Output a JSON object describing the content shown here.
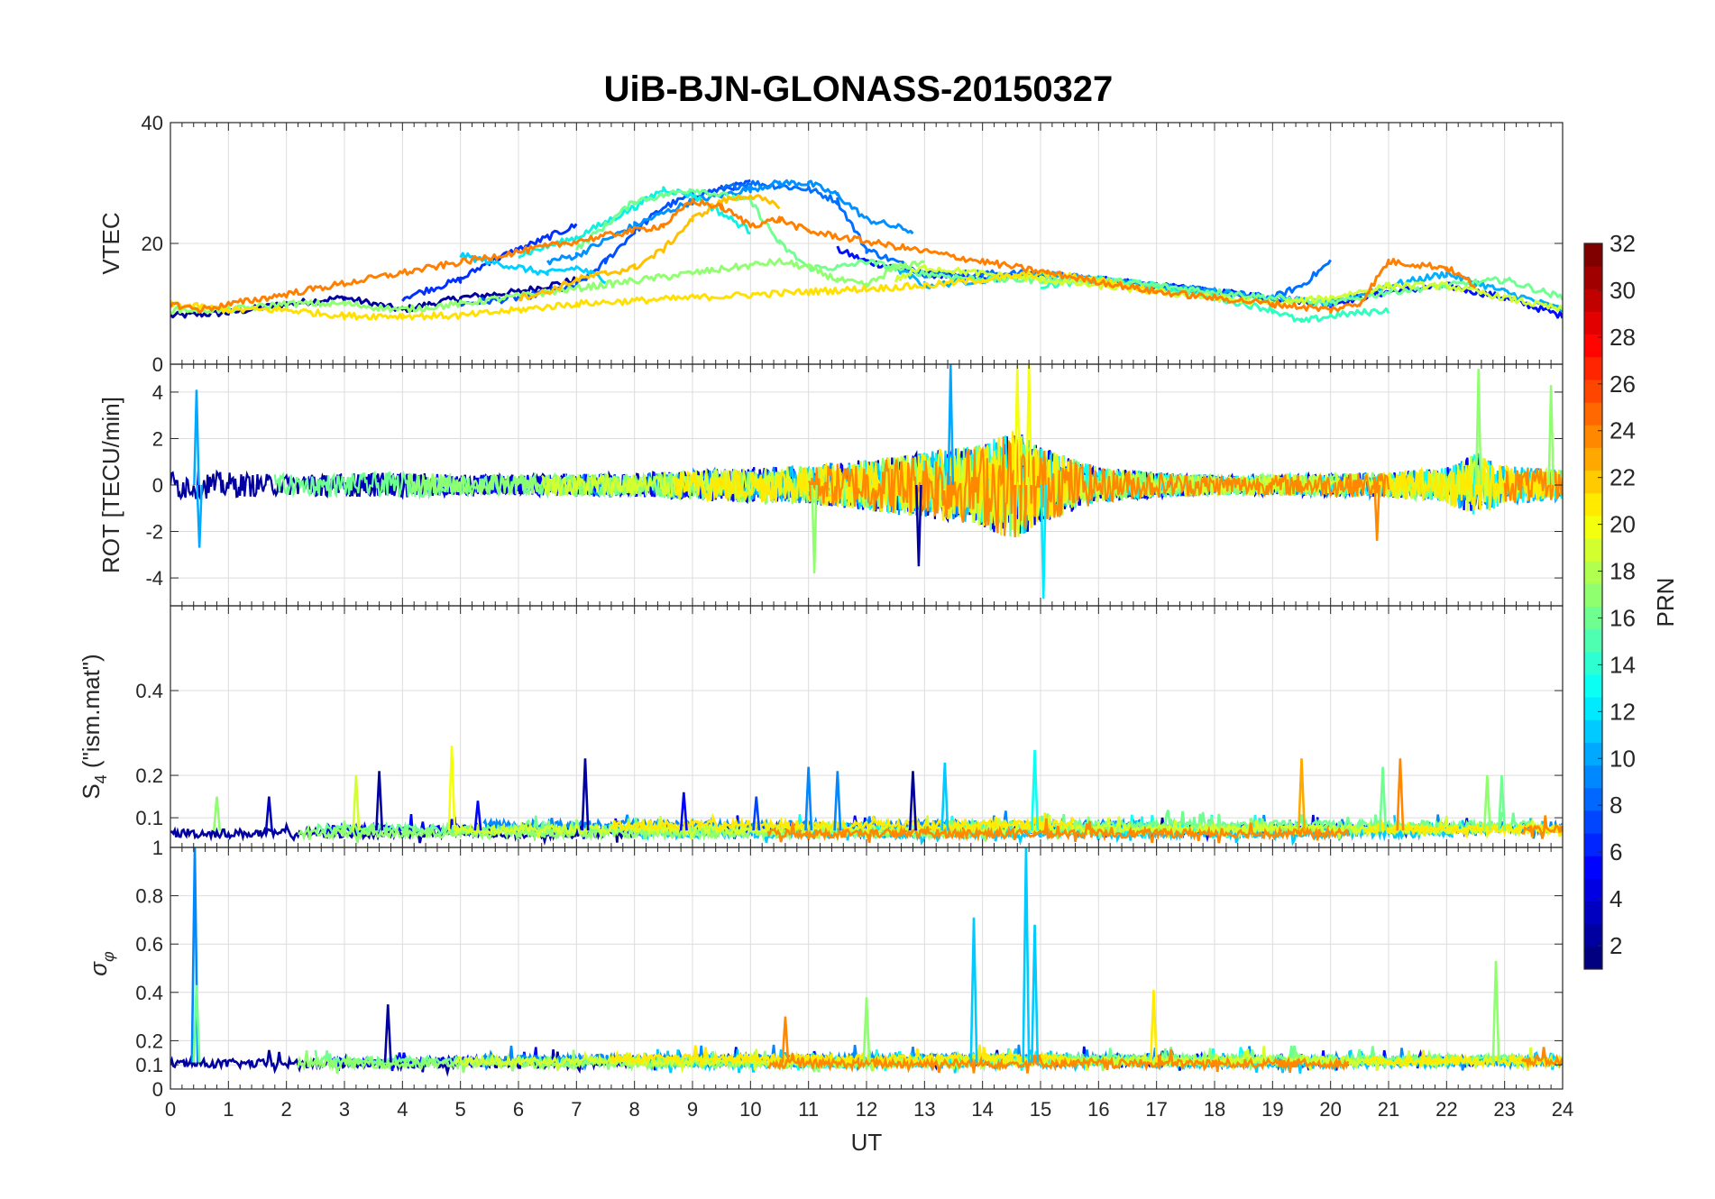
{
  "title": "UiB-BJN-GLONASS-20150327",
  "colorbar": {
    "label": "PRN",
    "range": [
      1,
      32
    ],
    "ticks": [
      2,
      4,
      6,
      8,
      10,
      12,
      14,
      16,
      18,
      20,
      22,
      24,
      26,
      28,
      30,
      32
    ],
    "tick_labels": [
      "2",
      "4",
      "6",
      "8",
      "10",
      "12",
      "14",
      "16",
      "18",
      "20",
      "22",
      "24",
      "26",
      "28",
      "30",
      "32"
    ],
    "colormap": "jet"
  },
  "chart_data": [
    {
      "type": "line",
      "name": "vtec",
      "ylabel": "VTEC",
      "xlim": [
        0,
        24
      ],
      "ylim": [
        0,
        40
      ],
      "yticks": [
        0,
        20,
        40
      ],
      "ytick_labels": [
        "0",
        "20",
        "40"
      ],
      "grid": true,
      "series": [
        {
          "prn": 2,
          "color": "#00009f",
          "x": [
            0,
            1,
            2,
            3,
            4,
            5,
            6,
            7
          ],
          "y": [
            8,
            8.5,
            10,
            11,
            9,
            11,
            12,
            14
          ]
        },
        {
          "prn": 3,
          "color": "#0010ff",
          "x": [
            11.5,
            12,
            13,
            14,
            15,
            16,
            17,
            18,
            19,
            20,
            21,
            22,
            23,
            24
          ],
          "y": [
            19,
            17,
            15,
            14,
            15,
            14,
            13,
            12,
            11,
            10,
            12,
            13,
            11,
            8
          ]
        },
        {
          "prn": 5,
          "color": "#0030ff",
          "x": [
            4,
            5,
            5.5,
            6,
            6.5,
            7
          ],
          "y": [
            11,
            14,
            17,
            19,
            21,
            23
          ]
        },
        {
          "prn": 6,
          "color": "#0050ff",
          "x": [
            5,
            6,
            7,
            7.5,
            8,
            8.5,
            9,
            9.5,
            10
          ],
          "y": [
            10,
            11,
            13,
            17,
            22,
            26,
            28,
            29,
            30
          ]
        },
        {
          "prn": 7,
          "color": "#0070ff",
          "x": [
            9.5,
            10,
            10.5,
            11,
            11.5,
            12,
            13,
            14,
            15,
            16,
            17,
            18,
            19,
            19.5,
            20
          ],
          "y": [
            29,
            30,
            29.5,
            29,
            27,
            19,
            15,
            15,
            15,
            14,
            13,
            12,
            11,
            13,
            17
          ]
        },
        {
          "prn": 9,
          "color": "#0090ff",
          "x": [
            6.5,
            7,
            8,
            9,
            10,
            10.5,
            11,
            11.5,
            12,
            12.8
          ],
          "y": [
            17,
            18,
            23,
            27,
            29,
            30,
            30,
            28,
            24,
            22
          ]
        },
        {
          "prn": 11,
          "color": "#00b0ff",
          "x": [
            12.5,
            13,
            14,
            15,
            16,
            17,
            18,
            19,
            20,
            21,
            22,
            23,
            24
          ],
          "y": [
            16,
            13,
            14,
            15,
            14,
            13,
            12,
            11,
            10,
            13,
            15,
            12,
            9
          ]
        },
        {
          "prn": 12,
          "color": "#00d0ff",
          "x": [
            5,
            5.5,
            6,
            6.5,
            7,
            7.5
          ],
          "y": [
            18,
            17,
            16,
            15,
            16,
            14
          ]
        },
        {
          "prn": 13,
          "color": "#10f0e0",
          "x": [
            6,
            7,
            8,
            8.5,
            9,
            10
          ],
          "y": [
            18,
            21,
            26,
            29,
            28,
            22
          ]
        },
        {
          "prn": 14,
          "color": "#30ffc0",
          "x": [
            15,
            16,
            17,
            18,
            19,
            19.5,
            20,
            21
          ],
          "y": [
            13,
            14,
            13,
            11,
            9,
            7,
            8,
            9
          ]
        },
        {
          "prn": 16,
          "color": "#70ff90",
          "x": [
            7,
            7.5,
            8,
            9,
            10,
            10.5,
            11,
            11.5,
            12,
            13,
            14,
            15,
            16,
            17,
            18,
            19,
            20,
            21,
            22,
            23,
            24
          ],
          "y": [
            19,
            23,
            27,
            29,
            27,
            20,
            16,
            16,
            17,
            15,
            14,
            14,
            14,
            13,
            12,
            11,
            10,
            12,
            13,
            14,
            11
          ]
        },
        {
          "prn": 17,
          "color": "#90ff70",
          "x": [
            0,
            1,
            2,
            3,
            4,
            5,
            10.5,
            11,
            11.5,
            12,
            12.5,
            13
          ],
          "y": [
            9,
            9,
            10,
            10,
            9,
            10,
            17,
            16,
            14,
            13,
            16,
            17
          ]
        },
        {
          "prn": 19,
          "color": "#d0ff30",
          "x": [
            12.5,
            13,
            14,
            15,
            16,
            17,
            18,
            19,
            20,
            21,
            22,
            23,
            24
          ],
          "y": [
            14,
            16,
            15,
            14,
            13,
            12,
            11,
            10,
            11,
            13,
            13,
            11,
            9
          ]
        },
        {
          "prn": 21,
          "color": "#ffe000",
          "x": [
            0,
            1,
            2,
            3,
            4,
            5,
            6,
            7,
            13,
            14,
            15,
            16,
            17
          ],
          "y": [
            10,
            9,
            9,
            8,
            8,
            8,
            9,
            10,
            13,
            14,
            15,
            14,
            12
          ]
        },
        {
          "prn": 22,
          "color": "#ffc000",
          "x": [
            6,
            6.5,
            7,
            7.5,
            8,
            8.5,
            9,
            9.5,
            10,
            10.5
          ],
          "y": [
            11,
            12,
            14,
            15,
            16,
            19,
            24,
            27,
            28,
            26
          ]
        },
        {
          "prn": 24,
          "color": "#ff8000",
          "x": [
            0,
            0.5,
            8.5,
            9,
            9.5,
            10,
            10.5,
            11,
            17,
            18,
            19,
            20,
            20.5,
            21,
            22,
            22.5
          ],
          "y": [
            10,
            9,
            23,
            27,
            26,
            23,
            24,
            22,
            12,
            11,
            10,
            9,
            10,
            17,
            16,
            13
          ]
        }
      ]
    },
    {
      "type": "line",
      "name": "rot",
      "ylabel": "ROT [TECU/min]",
      "xlim": [
        0,
        24
      ],
      "ylim": [
        -5.2,
        5.2
      ],
      "yticks": [
        -4,
        -2,
        0,
        2,
        4
      ],
      "ytick_labels": [
        "-4",
        "-2",
        "0",
        "2",
        "4"
      ],
      "grid": true,
      "noise_envelope": {
        "x": [
          0,
          1,
          2,
          3,
          4,
          5,
          6,
          7,
          8,
          9,
          10,
          11,
          12,
          13,
          14,
          14.5,
          15,
          16,
          17,
          18,
          19,
          20,
          21,
          22,
          22.5,
          23,
          24
        ],
        "amplitude": [
          1.2,
          1,
          0.8,
          0.9,
          1,
          0.8,
          0.8,
          0.9,
          0.9,
          1.2,
          1.4,
          1.5,
          2,
          2.6,
          3.2,
          4.5,
          3,
          1.4,
          1,
          0.8,
          0.8,
          0.9,
          1,
          1.4,
          2.5,
          1.5,
          1.2
        ]
      },
      "spikes": [
        {
          "x": 0.45,
          "y": 4.1,
          "prn": 10
        },
        {
          "x": 0.5,
          "y": -2.7,
          "prn": 10
        },
        {
          "x": 13.45,
          "y": 5.2,
          "prn": 10
        },
        {
          "x": 14.6,
          "y": 5.2,
          "prn": 20
        },
        {
          "x": 14.8,
          "y": 5.2,
          "prn": 20
        },
        {
          "x": 15.05,
          "y": -4.9,
          "prn": 12
        },
        {
          "x": 11.1,
          "y": -3.8,
          "prn": 17
        },
        {
          "x": 12.9,
          "y": -3.5,
          "prn": 2
        },
        {
          "x": 22.55,
          "y": 5.0,
          "prn": 17
        },
        {
          "x": 23.8,
          "y": 4.3,
          "prn": 17
        },
        {
          "x": 20.8,
          "y": -2.4,
          "prn": 24
        }
      ]
    },
    {
      "type": "line",
      "name": "s4",
      "ylabel": "S4 (\"ism.mat\")",
      "xlim": [
        0,
        24
      ],
      "ylim": [
        0.03,
        0.6
      ],
      "yticks": [
        0.1,
        0.2,
        0.4
      ],
      "ytick_labels": [
        "0.1",
        "0.2",
        "0.4"
      ],
      "grid": true,
      "baseline": 0.07,
      "spikes": [
        {
          "x": 0.8,
          "y": 0.15,
          "prn": 17
        },
        {
          "x": 1.7,
          "y": 0.15,
          "prn": 3
        },
        {
          "x": 3.2,
          "y": 0.2,
          "prn": 19
        },
        {
          "x": 3.6,
          "y": 0.21,
          "prn": 2
        },
        {
          "x": 4.85,
          "y": 0.27,
          "prn": 20
        },
        {
          "x": 5.3,
          "y": 0.14,
          "prn": 5
        },
        {
          "x": 7.15,
          "y": 0.24,
          "prn": 2
        },
        {
          "x": 8.85,
          "y": 0.16,
          "prn": 5
        },
        {
          "x": 10.1,
          "y": 0.15,
          "prn": 7
        },
        {
          "x": 11.0,
          "y": 0.22,
          "prn": 9
        },
        {
          "x": 11.5,
          "y": 0.21,
          "prn": 9
        },
        {
          "x": 12.8,
          "y": 0.21,
          "prn": 2
        },
        {
          "x": 13.35,
          "y": 0.23,
          "prn": 11
        },
        {
          "x": 14.9,
          "y": 0.26,
          "prn": 13
        },
        {
          "x": 19.5,
          "y": 0.24,
          "prn": 23
        },
        {
          "x": 21.2,
          "y": 0.24,
          "prn": 24
        },
        {
          "x": 20.9,
          "y": 0.22,
          "prn": 16
        },
        {
          "x": 22.7,
          "y": 0.2,
          "prn": 17
        },
        {
          "x": 22.95,
          "y": 0.2,
          "prn": 16
        }
      ]
    },
    {
      "type": "line",
      "name": "sigma_phi",
      "ylabel": "σφ",
      "xlabel": "UT",
      "xlim": [
        0,
        24
      ],
      "ylim": [
        0,
        1
      ],
      "yticks": [
        0,
        0.1,
        0.2,
        0.4,
        0.6,
        0.8,
        1
      ],
      "ytick_labels": [
        "0",
        "0.1",
        "0.2",
        "0.4",
        "0.6",
        "0.8",
        "1"
      ],
      "xticks": [
        0,
        1,
        2,
        3,
        4,
        5,
        6,
        7,
        8,
        9,
        10,
        11,
        12,
        13,
        14,
        15,
        16,
        17,
        18,
        19,
        20,
        21,
        22,
        23,
        24
      ],
      "xtick_labels": [
        "0",
        "1",
        "2",
        "3",
        "4",
        "5",
        "6",
        "7",
        "8",
        "9",
        "10",
        "11",
        "12",
        "13",
        "14",
        "15",
        "16",
        "17",
        "18",
        "19",
        "20",
        "21",
        "22",
        "23",
        "24"
      ],
      "grid": true,
      "baseline": 0.11,
      "spikes": [
        {
          "x": 0.42,
          "y": 1.0,
          "prn": 9
        },
        {
          "x": 0.45,
          "y": 0.43,
          "prn": 16
        },
        {
          "x": 3.75,
          "y": 0.35,
          "prn": 2
        },
        {
          "x": 13.85,
          "y": 0.71,
          "prn": 11
        },
        {
          "x": 14.75,
          "y": 1.0,
          "prn": 11
        },
        {
          "x": 14.9,
          "y": 0.68,
          "prn": 11
        },
        {
          "x": 16.95,
          "y": 0.41,
          "prn": 21
        },
        {
          "x": 22.85,
          "y": 0.53,
          "prn": 17
        },
        {
          "x": 12.0,
          "y": 0.38,
          "prn": 17
        },
        {
          "x": 10.6,
          "y": 0.3,
          "prn": 24
        }
      ]
    }
  ]
}
